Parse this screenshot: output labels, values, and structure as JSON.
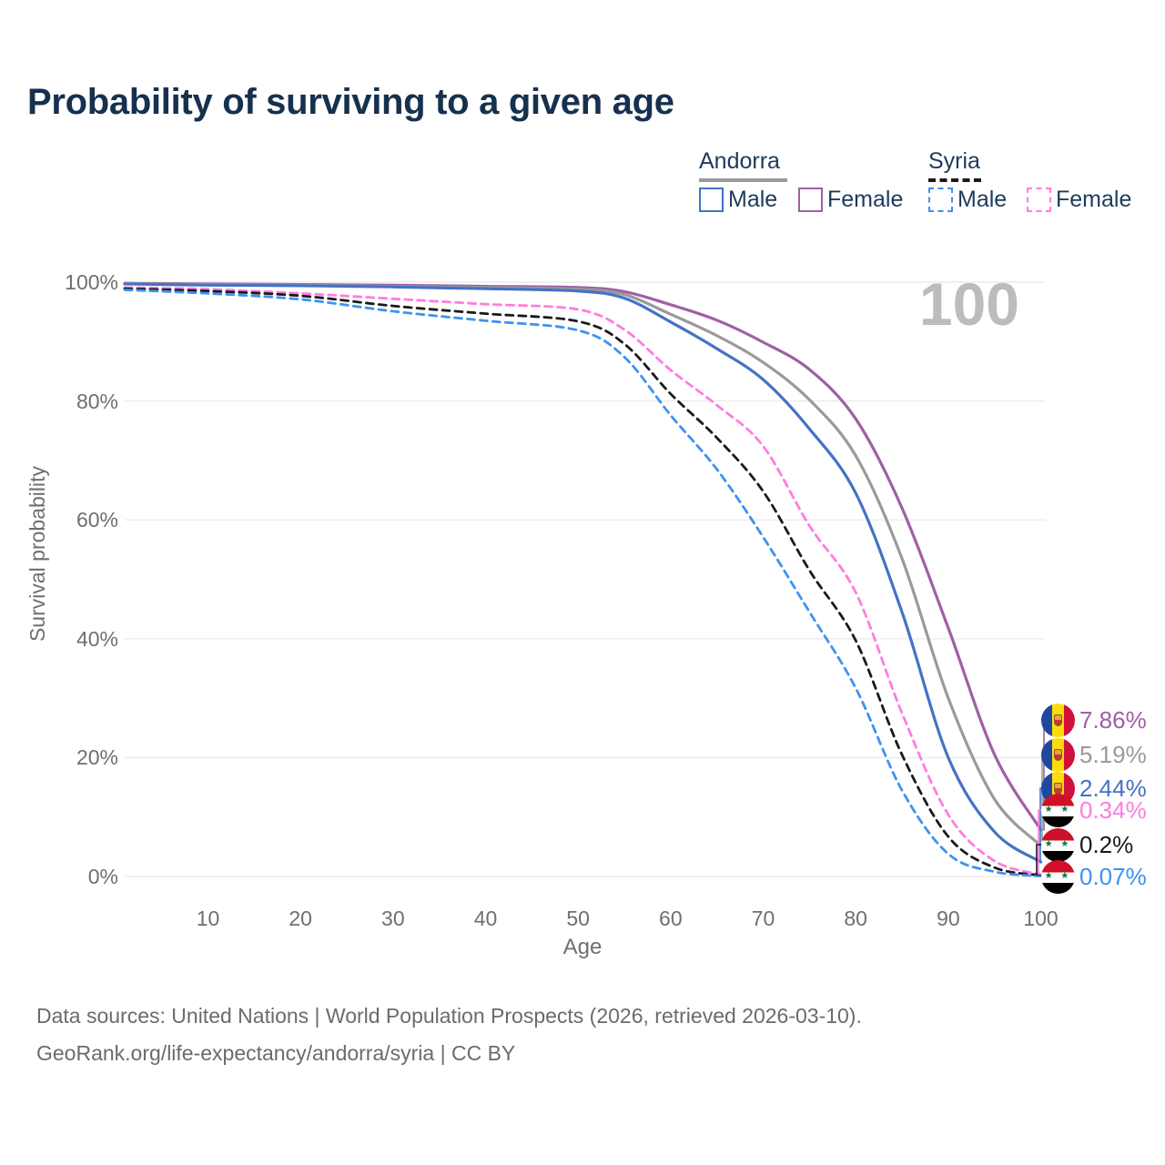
{
  "title": "Probability of surviving to a given age",
  "watermark_age_counter": "100",
  "legend": {
    "groups": [
      {
        "country": "Andorra",
        "line_style": "solid",
        "underline_color": "#9a9a9a",
        "items": [
          {
            "label": "Male",
            "color": "#4472c4",
            "dashed": false
          },
          {
            "label": "Female",
            "color": "#a05fa5",
            "dashed": false
          }
        ]
      },
      {
        "country": "Syria",
        "line_style": "dashed",
        "underline_color": "#1a1a1a",
        "items": [
          {
            "label": "Male",
            "color": "#3e92f0",
            "dashed": true
          },
          {
            "label": "Female",
            "color": "#ff7ce0",
            "dashed": true
          }
        ]
      }
    ]
  },
  "axes": {
    "y": {
      "title": "Survival probability",
      "ticks": [
        {
          "value": 100,
          "label": "100%"
        },
        {
          "value": 80,
          "label": "80%"
        },
        {
          "value": 60,
          "label": "60%"
        },
        {
          "value": 40,
          "label": "40%"
        },
        {
          "value": 20,
          "label": "20%"
        },
        {
          "value": 0,
          "label": "0%"
        }
      ]
    },
    "x": {
      "title": "Age",
      "ticks": [
        "10",
        "20",
        "30",
        "40",
        "50",
        "60",
        "70",
        "80",
        "90",
        "100"
      ]
    }
  },
  "chart_data": {
    "type": "line",
    "x_label": "Age",
    "y_label": "Survival probability",
    "x_range": [
      1,
      100
    ],
    "y_range_percent": [
      0,
      100
    ],
    "grid": "horizontal",
    "ages": [
      1,
      10,
      20,
      30,
      40,
      50,
      55,
      60,
      65,
      70,
      75,
      80,
      85,
      90,
      95,
      100
    ],
    "series": [
      {
        "name": "Andorra Female",
        "country": "Andorra",
        "sex": "Female",
        "color": "#a05fa5",
        "dashed": false,
        "flag": "andorra",
        "values_percent": [
          99.8,
          99.7,
          99.6,
          99.5,
          99.3,
          99.1,
          98.4,
          96.2,
          93.6,
          89.9,
          85.3,
          77.0,
          62.0,
          41.8,
          20.5,
          7.86
        ],
        "end_label": {
          "text": "7.86%",
          "value": 7.86,
          "label_y_percent": 26.3
        }
      },
      {
        "name": "Andorra Both sexes",
        "country": "Andorra",
        "sex": "Both",
        "color": "#9a9a9a",
        "dashed": false,
        "flag": "andorra",
        "values_percent": [
          99.8,
          99.6,
          99.5,
          99.3,
          99.1,
          98.8,
          97.9,
          94.6,
          91.0,
          86.5,
          80.2,
          70.8,
          53.5,
          30.0,
          13.0,
          5.19
        ],
        "end_label": {
          "text": "5.19%",
          "value": 5.19,
          "label_y_percent": 20.5
        }
      },
      {
        "name": "Andorra Male",
        "country": "Andorra",
        "sex": "Male",
        "color": "#4472c4",
        "dashed": false,
        "flag": "andorra",
        "values_percent": [
          99.7,
          99.5,
          99.4,
          99.2,
          98.9,
          98.5,
          97.3,
          93.3,
          88.8,
          83.6,
          75.3,
          64.5,
          44.5,
          20.0,
          7.5,
          2.44
        ],
        "end_label": {
          "text": "2.44%",
          "value": 2.44,
          "label_y_percent": 14.9
        }
      },
      {
        "name": "Syria Female",
        "country": "Syria",
        "sex": "Female",
        "color": "#ff7ce0",
        "dashed": true,
        "flag": "syria",
        "values_percent": [
          99.1,
          98.8,
          98.1,
          97.2,
          96.3,
          95.4,
          92.0,
          85.2,
          79.3,
          72.4,
          59.0,
          47.8,
          27.5,
          10.4,
          2.6,
          0.34
        ],
        "end_label": {
          "text": "0.34%",
          "value": 0.34,
          "label_y_percent": 11.2
        }
      },
      {
        "name": "Syria Both sexes",
        "country": "Syria",
        "sex": "Both",
        "color": "#1a1a1a",
        "dashed": true,
        "flag": "syria",
        "values_percent": [
          98.9,
          98.5,
          97.7,
          96.0,
          94.7,
          93.4,
          89.6,
          81.2,
          73.8,
          64.8,
          51.5,
          39.7,
          20.5,
          6.7,
          1.5,
          0.2
        ],
        "end_label": {
          "text": "0.2%",
          "value": 0.2,
          "label_y_percent": 5.4
        }
      },
      {
        "name": "Syria Male",
        "country": "Syria",
        "sex": "Male",
        "color": "#3e92f0",
        "dashed": true,
        "flag": "syria",
        "values_percent": [
          98.7,
          98.1,
          97.1,
          95.1,
          93.5,
          91.9,
          87.4,
          77.6,
          68.5,
          57.1,
          44.5,
          31.7,
          14.5,
          3.8,
          0.8,
          0.07
        ],
        "end_label": {
          "text": "0.07%",
          "value": 0.07,
          "label_y_percent": 0.0
        }
      }
    ]
  },
  "footer": {
    "line1": "Data sources: United Nations | World Population Prospects (2026, retrieved 2026-03-10).",
    "line2": "GeoRank.org/life-expectancy/andorra/syria | CC BY"
  },
  "flag_colors": {
    "andorra": {
      "blue": "#1f47a0",
      "yellow": "#fcdd09",
      "red": "#d0103a"
    },
    "syria": {
      "red": "#ce1126",
      "white": "#ffffff",
      "black": "#000000",
      "star_green": "#007a3d"
    }
  }
}
